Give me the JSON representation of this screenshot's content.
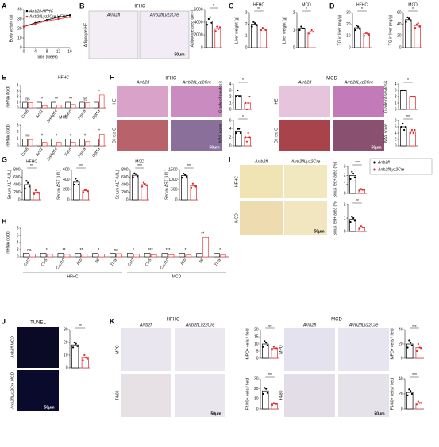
{
  "panel_letters": [
    "A",
    "B",
    "C",
    "D",
    "E",
    "F",
    "G",
    "H",
    "I",
    "J",
    "K"
  ],
  "texts": {
    "hfhc": "HFHC",
    "mcd": "MCD",
    "fl": "Arrb2fl",
    "cre": "Arrb2flLyz2Cre",
    "scale": "50μm",
    "adipo_he": "Adipocyte-HE",
    "he": "HE",
    "oil": "Oil red O",
    "tunel": "TUNEL",
    "fl_mcd": "Arrb2fl-MCD",
    "cre_mcd": "Arrb2flLyz2Cre-MCD",
    "mpo": "MPO",
    "f480": "F4/80"
  },
  "group_colors": [
    "#000000",
    "#e8262a"
  ],
  "legend": [
    "Arrb2fl",
    "Arrb2flLyz2Cre"
  ],
  "charts": [
    {
      "type": "line",
      "ylabel": "Body weight (g)",
      "xlabel": "Time (week)",
      "x": [
        0,
        4,
        8,
        12,
        16
      ],
      "xlim": [
        0,
        16
      ],
      "xticks": [
        0,
        4,
        8,
        12,
        16
      ],
      "ylim": [
        0,
        40
      ],
      "yticks": [
        0,
        10,
        20,
        30,
        40
      ],
      "series": [
        {
          "name": "Arrb2fl-HFHC",
          "color": "#000000",
          "values": [
            22,
            26,
            29,
            32,
            34
          ]
        },
        {
          "name": "Arrb2flLyz2Cre-HFHC",
          "color": "#e8262a",
          "values": [
            22,
            25,
            28,
            30,
            32
          ]
        }
      ]
    },
    {
      "type": "dotbar",
      "ylabel": "Adipocyte area (μm²)",
      "ylim": [
        0,
        6000
      ],
      "yticks": [
        0,
        2000,
        4000,
        6000
      ],
      "means": [
        4200,
        3000
      ],
      "points": [
        [
          3600,
          4500,
          4800,
          3900
        ],
        [
          2600,
          3300,
          2900,
          3200
        ]
      ],
      "sig": "*"
    },
    {
      "type": "dotbar",
      "title": "HFHC",
      "ylabel": "Liver weight (g)",
      "ylim": [
        0,
        3
      ],
      "yticks": [
        0,
        1,
        2,
        3
      ],
      "means": [
        2.0,
        1.6
      ],
      "points": [
        [
          1.8,
          2.2,
          2.1,
          1.9
        ],
        [
          1.5,
          1.7,
          1.6,
          1.5
        ]
      ],
      "sig": "**"
    },
    {
      "type": "dotbar",
      "title": "MCD",
      "ylabel": "Liver weight (g)",
      "ylim": [
        0,
        2
      ],
      "yticks": [
        0,
        1,
        2
      ],
      "means": [
        1.1,
        0.9
      ],
      "points": [
        [
          1.0,
          1.2,
          1.1,
          1.1
        ],
        [
          0.8,
          0.9,
          1.0,
          0.9
        ]
      ],
      "sig": "*"
    },
    {
      "type": "dotbar",
      "title": "HFHC",
      "ylabel": "TG in liver (mg/g)",
      "ylim": [
        0,
        30
      ],
      "yticks": [
        0,
        10,
        20,
        30
      ],
      "means": [
        17,
        12
      ],
      "points": [
        [
          15,
          19,
          18,
          16
        ],
        [
          10,
          13,
          12,
          11
        ]
      ],
      "sig": "*"
    },
    {
      "type": "dotbar",
      "title": "MCD",
      "ylabel": "TG in liver (mg/g)",
      "ylim": [
        0,
        60
      ],
      "yticks": [
        0,
        20,
        40,
        60
      ],
      "means": [
        48,
        38
      ],
      "points": [
        [
          44,
          52,
          50,
          46
        ],
        [
          34,
          40,
          42,
          36
        ]
      ],
      "sig": "*"
    },
    {
      "type": "grouped",
      "title": "HFHC",
      "ylabel": "mRNA (fold)",
      "ylim": [
        0,
        4
      ],
      "yticks": [
        0,
        1,
        2,
        3,
        4
      ],
      "categories": [
        "Cd36",
        "Scd1",
        "Srebp1c",
        "Fasn",
        "Ppara",
        "Cpt1a"
      ],
      "means": [
        [
          1,
          1,
          1,
          1,
          1,
          1
        ],
        [
          0.9,
          0.4,
          0.5,
          0.6,
          0.9,
          2.3
        ]
      ],
      "sig": [
        "ns",
        "*",
        "**",
        "**",
        "ns",
        "*"
      ]
    },
    {
      "type": "grouped",
      "title": "MCD",
      "ylabel": "mRNA (fold)",
      "ylim": [
        0,
        3
      ],
      "yticks": [
        0,
        1,
        2,
        3
      ],
      "categories": [
        "Cd36",
        "Scd1",
        "Srebp1c",
        "Fasn",
        "Ppara",
        "Cpt1a"
      ],
      "means": [
        [
          1,
          1,
          1,
          1,
          1,
          1
        ],
        [
          0.9,
          0.5,
          0.5,
          0.5,
          0.6,
          1.7
        ]
      ],
      "sig": [
        "ns",
        "*",
        "*",
        "*",
        "*",
        "*"
      ]
    },
    {
      "type": "dotbar",
      "ylabel": "Grade of steatosis",
      "ylim": [
        0,
        4
      ],
      "yticks": [
        0,
        1,
        2,
        3,
        4
      ],
      "means": [
        2.2,
        1.0
      ],
      "points": [
        [
          2,
          3,
          2,
          2
        ],
        [
          1,
          0,
          1,
          2
        ]
      ],
      "sig": "*"
    },
    {
      "type": "dotbar",
      "ylabel": "NAS score",
      "ylim": [
        0,
        6
      ],
      "yticks": [
        0,
        2,
        4,
        6
      ],
      "means": [
        3.5,
        2.0
      ],
      "points": [
        [
          3,
          4,
          4,
          3
        ],
        [
          2,
          1,
          3,
          2
        ]
      ],
      "sig": "*"
    },
    {
      "type": "dotbar",
      "ylabel": "Grade of steatosis",
      "ylim": [
        0,
        4
      ],
      "yticks": [
        0,
        1,
        2,
        3,
        4
      ],
      "means": [
        3.0,
        2.0
      ],
      "points": [
        [
          3,
          3,
          3,
          3
        ],
        [
          2,
          2,
          2,
          2
        ]
      ],
      "sig": "*"
    },
    {
      "type": "dotbar",
      "ylabel": "NAS score",
      "ylim": [
        0,
        8
      ],
      "yticks": [
        0,
        2,
        4,
        6,
        8
      ],
      "means": [
        6,
        4.5
      ],
      "points": [
        [
          6,
          7,
          5,
          6
        ],
        [
          4,
          5,
          4,
          5
        ]
      ],
      "sig": "***"
    },
    {
      "type": "dotbar",
      "title": "HFHC",
      "ylabel": "Serum ALT (U/L)",
      "ylim": [
        0,
        800
      ],
      "yticks": [
        0,
        200,
        400,
        600,
        800
      ],
      "means": [
        400,
        200
      ],
      "points": [
        [
          300,
          500,
          450,
          350
        ],
        [
          150,
          250,
          200,
          180
        ]
      ],
      "sig": "**"
    },
    {
      "type": "dotbar",
      "ylabel": "Serum AST (U/L)",
      "ylim": [
        0,
        600
      ],
      "yticks": [
        0,
        200,
        400,
        600
      ],
      "means": [
        350,
        180
      ],
      "points": [
        [
          300,
          420,
          380,
          300
        ],
        [
          150,
          200,
          190,
          170
        ]
      ],
      "sig": "**"
    },
    {
      "type": "dotbar",
      "title": "MCD",
      "ylabel": "Serum ALT (U/L)",
      "ylim": [
        0,
        800
      ],
      "yticks": [
        0,
        200,
        400,
        600,
        800
      ],
      "means": [
        650,
        400
      ],
      "points": [
        [
          600,
          700,
          680,
          620
        ],
        [
          350,
          450,
          420,
          380
        ]
      ],
      "sig": "***"
    },
    {
      "type": "dotbar",
      "ylabel": "Serum AST (U/L)",
      "ylim": [
        0,
        1500
      ],
      "yticks": [
        0,
        500,
        1000,
        1500
      ],
      "means": [
        1200,
        700
      ],
      "points": [
        [
          1100,
          1300,
          1250,
          1150
        ],
        [
          600,
          800,
          700,
          650
        ]
      ],
      "sig": "***"
    },
    {
      "type": "dotbar",
      "ylabel": "Sirius red+ area (%)",
      "ylim": [
        0,
        3
      ],
      "yticks": [
        0,
        1,
        2,
        3
      ],
      "means": [
        2.0,
        0.4
      ],
      "points": [
        [
          1.6,
          2.4,
          2.2,
          1.8
        ],
        [
          0.3,
          0.5,
          0.4,
          0.4
        ]
      ],
      "sig": "***"
    },
    {
      "type": "dotbar",
      "ylabel": "Sirius red+ area (%)",
      "ylim": [
        0,
        2
      ],
      "yticks": [
        0,
        1,
        2
      ],
      "means": [
        0.9,
        0.3
      ],
      "points": [
        [
          0.7,
          1.1,
          1.0,
          0.8
        ],
        [
          0.2,
          0.4,
          0.3,
          0.3
        ]
      ],
      "sig": "**"
    },
    {
      "type": "grouped",
      "ylabel": "mRNA (fold)",
      "ylim": [
        0,
        8
      ],
      "yticks": [
        0,
        2,
        4,
        6,
        8
      ],
      "categories": [
        "Ccl2",
        "Ccl5",
        "Cxcl10",
        "Il1b",
        "Il6",
        "Tnfa",
        "Ccl2",
        "Ccl5",
        "Cxcl10",
        "Il1b",
        "Il6",
        "Tnfa"
      ],
      "groups": [
        "HFHC",
        "MCD"
      ],
      "means": [
        [
          1,
          1,
          1,
          1,
          1,
          1,
          1,
          1,
          1,
          1,
          1,
          1
        ],
        [
          0.8,
          0.7,
          0.7,
          0.8,
          0.8,
          0.9,
          0.7,
          0.6,
          0.6,
          0.5,
          5.5,
          0.5
        ]
      ],
      "sig": [
        "ns",
        "*",
        "**",
        "**",
        "*",
        "ns",
        "*",
        "***",
        "***",
        "*",
        "**",
        "*"
      ]
    },
    {
      "type": "dotbar",
      "ylabel": "TUNEL+ cells / field",
      "ylim": [
        0,
        30
      ],
      "yticks": [
        0,
        10,
        20,
        30
      ],
      "means": [
        18,
        8
      ],
      "points": [
        [
          16,
          20,
          19,
          17
        ],
        [
          6,
          10,
          8,
          7
        ]
      ],
      "sig": "**"
    },
    {
      "type": "dotbar",
      "ylabel": "MPO+ cells / field",
      "ylim": [
        0,
        20
      ],
      "yticks": [
        0,
        5,
        10,
        15,
        20
      ],
      "means": [
        10,
        7
      ],
      "points": [
        [
          8,
          12,
          11,
          9
        ],
        [
          6,
          8,
          7,
          7
        ]
      ],
      "sig": "ns"
    },
    {
      "type": "dotbar",
      "ylabel": "F4/80+ cells / field",
      "ylim": [
        0,
        30
      ],
      "yticks": [
        0,
        10,
        20,
        30
      ],
      "means": [
        18,
        5
      ],
      "points": [
        [
          15,
          21,
          20,
          16
        ],
        [
          4,
          6,
          5,
          5
        ]
      ],
      "sig": "***"
    },
    {
      "type": "dotbar",
      "ylabel": "MPO+ cells / field",
      "ylim": [
        0,
        40
      ],
      "yticks": [
        0,
        20,
        40
      ],
      "means": [
        20,
        15
      ],
      "points": [
        [
          15,
          25,
          22,
          18
        ],
        [
          10,
          20,
          15,
          14
        ]
      ],
      "sig": "ns"
    },
    {
      "type": "dotbar",
      "ylabel": "F4/80+ cells / field",
      "ylim": [
        0,
        40
      ],
      "yticks": [
        0,
        20,
        40
      ],
      "means": [
        22,
        8
      ],
      "points": [
        [
          18,
          26,
          24,
          20
        ],
        [
          6,
          10,
          8,
          8
        ]
      ],
      "sig": "***"
    }
  ]
}
